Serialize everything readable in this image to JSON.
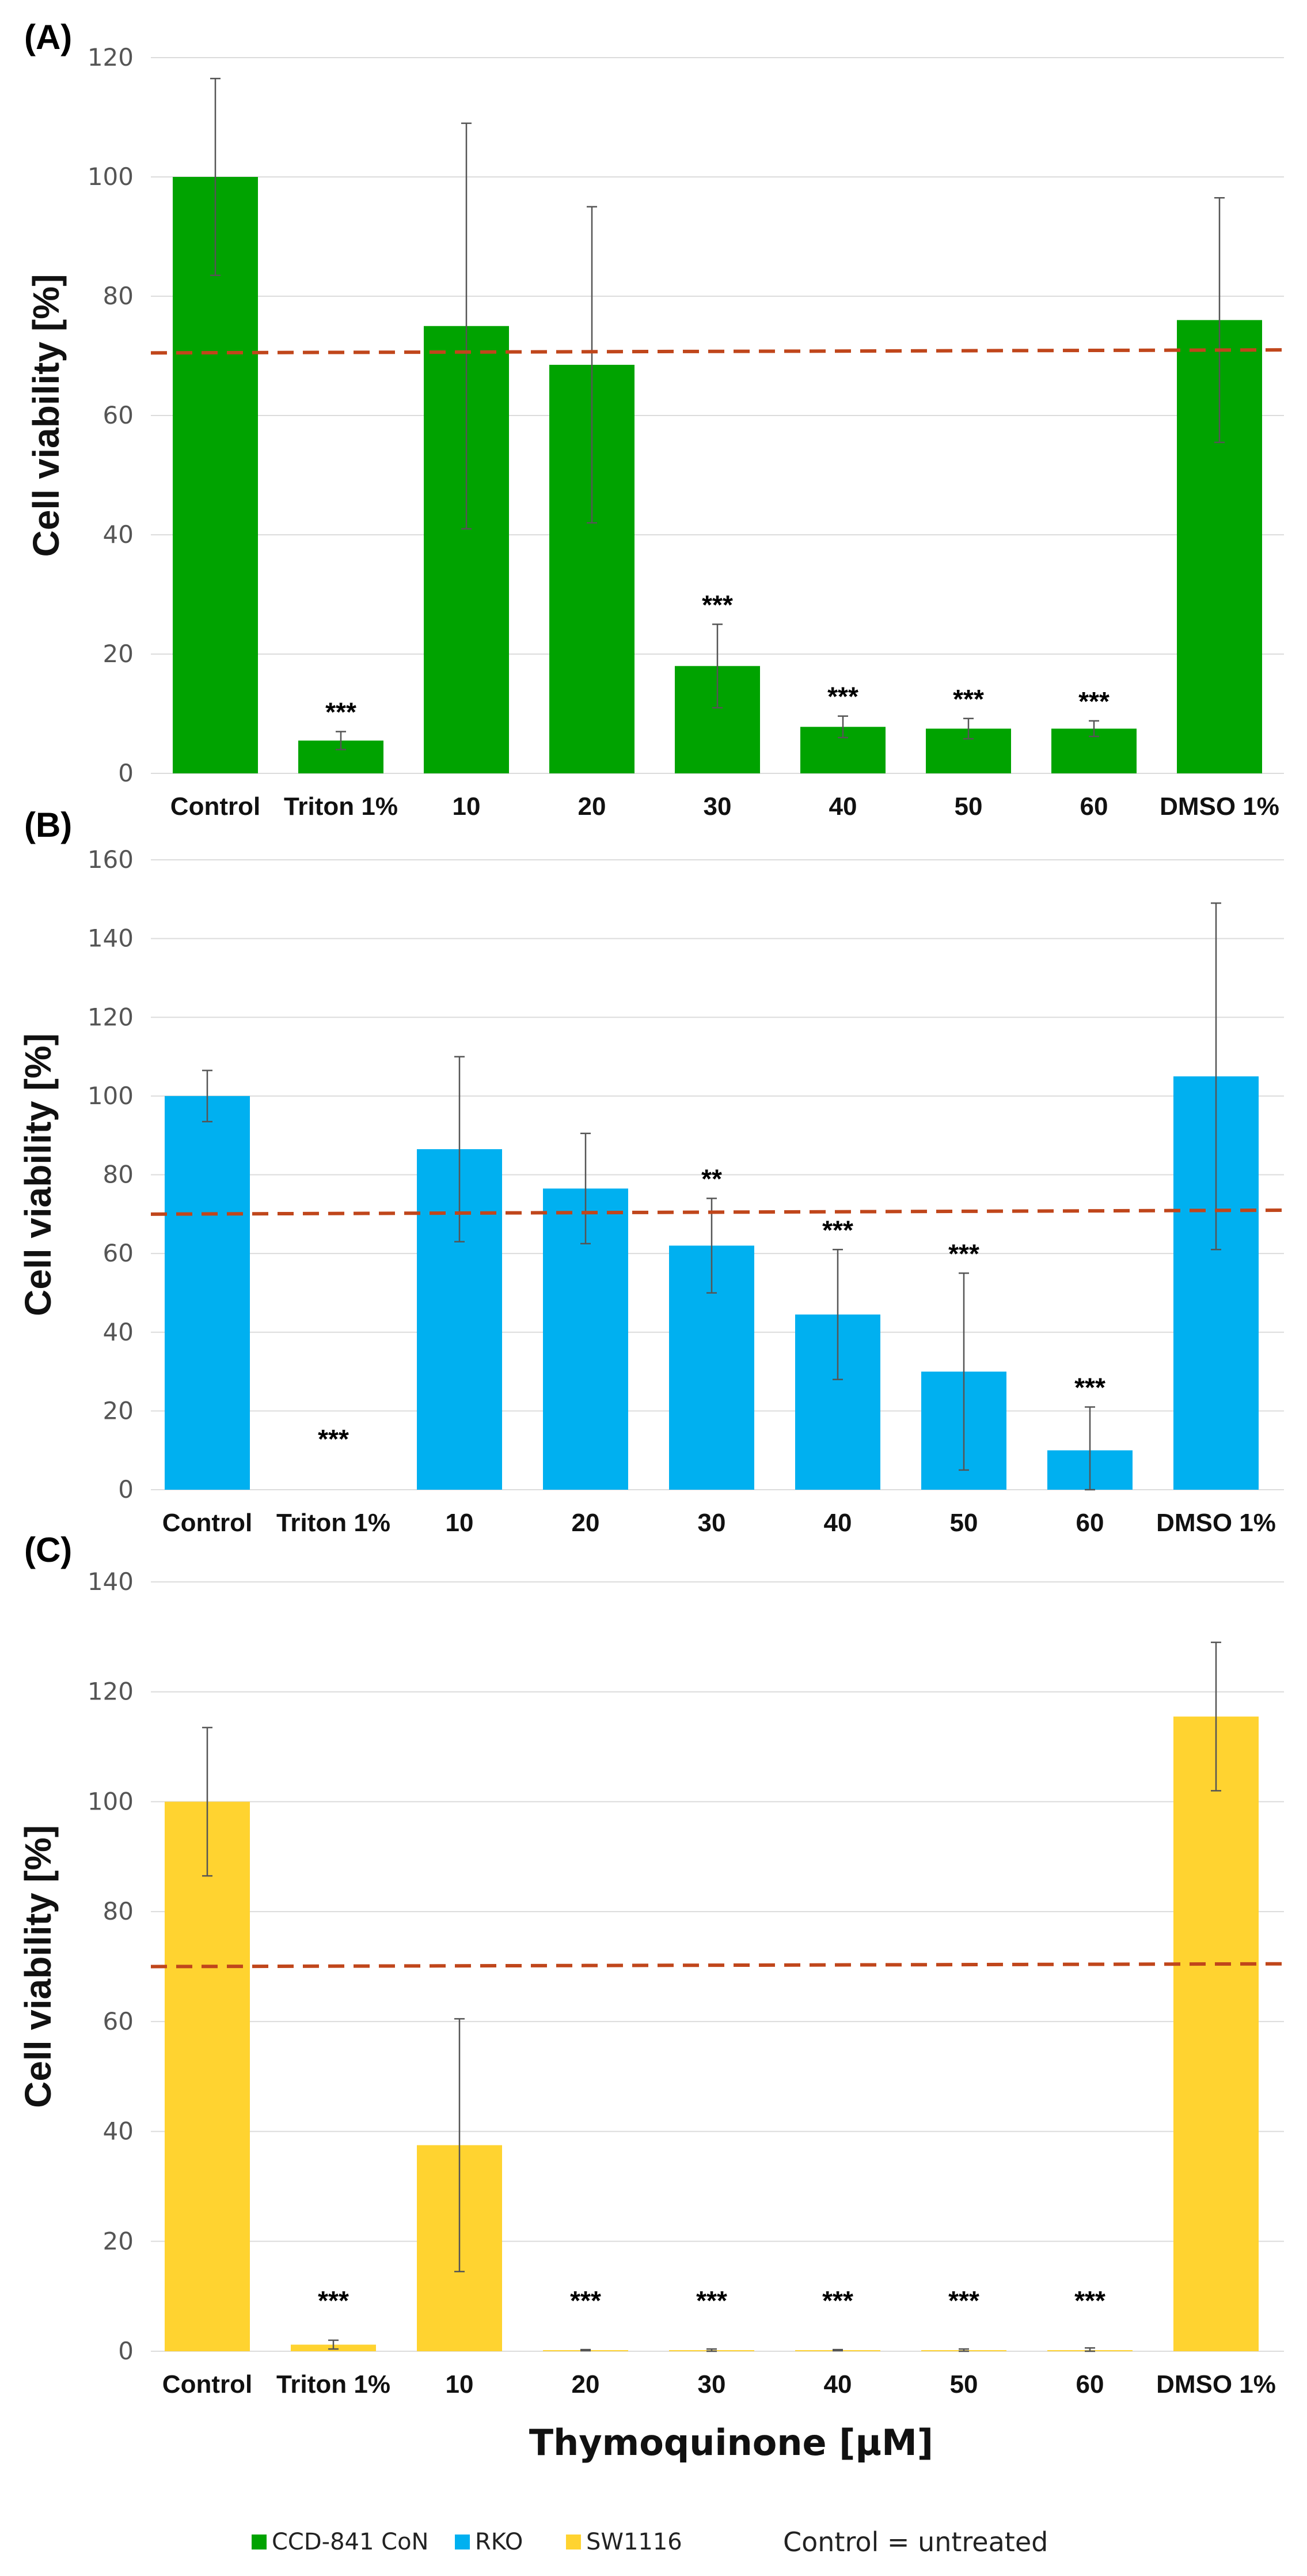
{
  "chart_data": [
    {
      "type": "bar",
      "panel_label": "(A)",
      "ylabel": "Cell viability [%]",
      "xlabel": "",
      "categories": [
        "Control",
        "Triton 1%",
        "10",
        "20",
        "30",
        "40",
        "50",
        "60",
        "DMSO 1%"
      ],
      "series": [
        {
          "name": "CCD-841 CoN",
          "color": "#00a300",
          "values": [
            100,
            5.5,
            75,
            68.5,
            18,
            7.8,
            7.5,
            7.5,
            76
          ],
          "errors": [
            16.5,
            1.5,
            34,
            26.5,
            7,
            1.8,
            1.7,
            1.3,
            20.5
          ]
        }
      ],
      "significance": [
        "",
        "***",
        "",
        "",
        "***",
        "***",
        "***",
        "***",
        ""
      ],
      "ylim": [
        0,
        120
      ],
      "yticks": [
        0,
        20,
        40,
        60,
        80,
        100,
        120
      ],
      "threshold": [
        70.5,
        71
      ]
    },
    {
      "type": "bar",
      "panel_label": "(B)",
      "ylabel": "Cell viability [%]",
      "xlabel": "",
      "categories": [
        "Control",
        "Triton 1%",
        "10",
        "20",
        "30",
        "40",
        "50",
        "60",
        "DMSO 1%"
      ],
      "series": [
        {
          "name": "RKO",
          "color": "#00b0f0",
          "values": [
            100,
            0,
            86.5,
            76.5,
            62,
            44.5,
            30,
            10,
            105
          ],
          "errors": [
            6.5,
            0,
            23.5,
            14,
            12,
            16.5,
            25,
            11,
            44
          ]
        }
      ],
      "significance": [
        "",
        "***",
        "",
        "",
        "**",
        "***",
        "***",
        "***",
        ""
      ],
      "ylim": [
        0,
        160
      ],
      "yticks": [
        0,
        20,
        40,
        60,
        80,
        100,
        120,
        140,
        160
      ],
      "threshold": [
        70,
        71
      ]
    },
    {
      "type": "bar",
      "panel_label": "(C)",
      "ylabel": "Cell viability [%]",
      "xlabel": "Thymoquinone [µM]",
      "categories": [
        "Control",
        "Triton 1%",
        "10",
        "20",
        "30",
        "40",
        "50",
        "60",
        "DMSO 1%"
      ],
      "series": [
        {
          "name": "SW1116",
          "color": "#ffd330",
          "values": [
            100,
            1.2,
            37.5,
            0.2,
            0.2,
            0.2,
            0.2,
            0.2,
            115.5
          ],
          "errors": [
            13.5,
            0.8,
            23,
            0.1,
            0.2,
            0.1,
            0.2,
            0.4,
            13.5
          ]
        }
      ],
      "significance": [
        "",
        "***",
        "",
        "***",
        "***",
        "***",
        "***",
        "***",
        ""
      ],
      "ylim": [
        0,
        140
      ],
      "yticks": [
        0,
        20,
        40,
        60,
        80,
        100,
        120,
        140
      ],
      "threshold": [
        70,
        70.5
      ]
    }
  ],
  "legend": {
    "items": [
      {
        "label": "CCD-841 CoN",
        "color": "#00a300"
      },
      {
        "label": "RKO",
        "color": "#00b0f0"
      },
      {
        "label": "SW1116",
        "color": "#ffd330"
      }
    ],
    "note": "Control = untreated"
  }
}
